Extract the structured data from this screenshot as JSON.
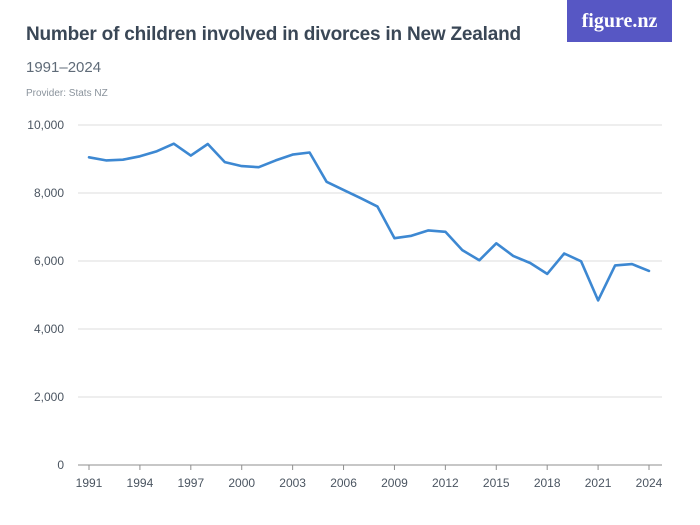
{
  "title": "Number of children involved in divorces in New Zealand",
  "subtitle": "1991–2024",
  "provider": "Provider: Stats NZ",
  "logo": "figure.nz",
  "colors": {
    "line": "#3d88d2",
    "logo_bg": "#5757c4"
  },
  "chart_data": {
    "type": "line",
    "x": [
      1991,
      1992,
      1993,
      1994,
      1995,
      1996,
      1997,
      1998,
      1999,
      2000,
      2001,
      2002,
      2003,
      2004,
      2005,
      2006,
      2007,
      2008,
      2009,
      2010,
      2011,
      2012,
      2013,
      2014,
      2015,
      2016,
      2017,
      2018,
      2019,
      2020,
      2021,
      2022,
      2023,
      2024
    ],
    "series": [
      {
        "values": [
          9050,
          8960,
          8980,
          9080,
          9230,
          9450,
          9100,
          9440,
          8910,
          8790,
          8760,
          8960,
          9130,
          9190,
          8330,
          8090,
          7850,
          7600,
          6670,
          6740,
          6900,
          6860,
          6320,
          6020,
          6520,
          6150,
          5940,
          5620,
          6220,
          5990,
          4840,
          5870,
          5910,
          5710
        ]
      }
    ],
    "xticks": [
      "1991",
      "1994",
      "1997",
      "2000",
      "2003",
      "2006",
      "2009",
      "2012",
      "2015",
      "2018",
      "2021",
      "2024"
    ],
    "yticks": [
      "0",
      "2,000",
      "4,000",
      "6,000",
      "8,000",
      "10,000"
    ],
    "ylim": [
      0,
      10000
    ],
    "xlim": [
      1991,
      2024
    ],
    "grid": true,
    "legend": "none"
  }
}
